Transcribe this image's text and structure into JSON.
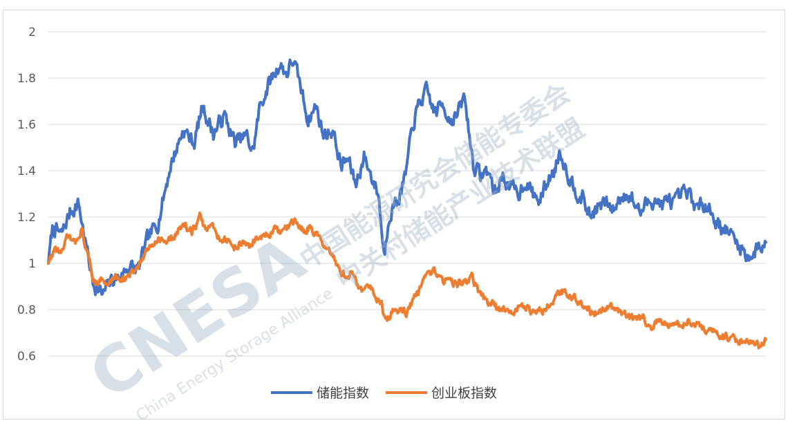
{
  "chart_data": {
    "type": "line",
    "title": "",
    "xlabel": "",
    "ylabel": "",
    "ylim": [
      0.6,
      2.0
    ],
    "yticks": [
      "0.6",
      "0.8",
      "1",
      "1.2",
      "1.4",
      "1.6",
      "1.8",
      "2"
    ],
    "grid": true,
    "legend_position": "bottom-center",
    "x": [
      0,
      10,
      20,
      30,
      40,
      50,
      60,
      70,
      80,
      90,
      100
    ],
    "series": [
      {
        "name": "储能指数",
        "color": "#4472C4",
        "anchors": [
          [
            0,
            1.0
          ],
          [
            0.6,
            1.16
          ],
          [
            1.8,
            1.12
          ],
          [
            3.0,
            1.22
          ],
          [
            4.2,
            1.26
          ],
          [
            5.0,
            1.12
          ],
          [
            6.2,
            0.92
          ],
          [
            7.6,
            0.86
          ],
          [
            8.8,
            0.93
          ],
          [
            10.0,
            0.94
          ],
          [
            11.2,
            0.99
          ],
          [
            12.5,
            0.97
          ],
          [
            13.8,
            1.1
          ],
          [
            15.3,
            1.18
          ],
          [
            17.0,
            1.42
          ],
          [
            18.8,
            1.58
          ],
          [
            20.3,
            1.52
          ],
          [
            21.5,
            1.68
          ],
          [
            23.0,
            1.56
          ],
          [
            24.5,
            1.64
          ],
          [
            26.0,
            1.52
          ],
          [
            27.6,
            1.55
          ],
          [
            28.5,
            1.48
          ],
          [
            29.5,
            1.68
          ],
          [
            30.8,
            1.78
          ],
          [
            32.2,
            1.86
          ],
          [
            33.2,
            1.82
          ],
          [
            34.1,
            1.88
          ],
          [
            35.0,
            1.78
          ],
          [
            36.2,
            1.62
          ],
          [
            37.3,
            1.68
          ],
          [
            38.4,
            1.55
          ],
          [
            39.6,
            1.58
          ],
          [
            40.8,
            1.42
          ],
          [
            41.8,
            1.45
          ],
          [
            42.8,
            1.34
          ],
          [
            44.0,
            1.46
          ],
          [
            45.0,
            1.38
          ],
          [
            46.0,
            1.3
          ],
          [
            46.8,
            1.03
          ],
          [
            47.5,
            1.22
          ],
          [
            48.8,
            1.28
          ],
          [
            49.8,
            1.38
          ],
          [
            50.8,
            1.6
          ],
          [
            51.8,
            1.7
          ],
          [
            52.8,
            1.74
          ],
          [
            53.8,
            1.65
          ],
          [
            55.0,
            1.69
          ],
          [
            56.0,
            1.62
          ],
          [
            57.0,
            1.64
          ],
          [
            58.0,
            1.72
          ],
          [
            59.2,
            1.43
          ],
          [
            60.2,
            1.38
          ],
          [
            61.3,
            1.4
          ],
          [
            62.3,
            1.3
          ],
          [
            63.3,
            1.38
          ],
          [
            64.3,
            1.33
          ],
          [
            65.5,
            1.3
          ],
          [
            66.5,
            1.36
          ],
          [
            67.5,
            1.3
          ],
          [
            68.5,
            1.27
          ],
          [
            69.5,
            1.35
          ],
          [
            70.5,
            1.4
          ],
          [
            71.3,
            1.49
          ],
          [
            72.5,
            1.38
          ],
          [
            73.5,
            1.32
          ],
          [
            74.5,
            1.28
          ],
          [
            75.5,
            1.2
          ],
          [
            76.5,
            1.24
          ],
          [
            77.7,
            1.26
          ],
          [
            78.7,
            1.23
          ],
          [
            79.7,
            1.28
          ],
          [
            80.5,
            1.31
          ],
          [
            81.5,
            1.27
          ],
          [
            82.5,
            1.22
          ],
          [
            83.5,
            1.26
          ],
          [
            84.5,
            1.28
          ],
          [
            85.5,
            1.25
          ],
          [
            86.5,
            1.27
          ],
          [
            87.5,
            1.26
          ],
          [
            88.5,
            1.3
          ],
          [
            89.5,
            1.29
          ],
          [
            90.5,
            1.23
          ],
          [
            91.7,
            1.27
          ],
          [
            92.7,
            1.2
          ],
          [
            93.7,
            1.16
          ],
          [
            94.7,
            1.14
          ],
          [
            95.7,
            1.1
          ],
          [
            96.7,
            1.06
          ],
          [
            97.5,
            1.03
          ],
          [
            98.3,
            1.04
          ],
          [
            99.0,
            1.07
          ],
          [
            100,
            1.09
          ]
        ]
      },
      {
        "name": "创业板指数",
        "color": "#ED7D31",
        "anchors": [
          [
            0,
            1.0
          ],
          [
            0.8,
            1.06
          ],
          [
            2.0,
            1.05
          ],
          [
            2.8,
            1.12
          ],
          [
            3.6,
            1.08
          ],
          [
            4.6,
            1.15
          ],
          [
            5.6,
            1.02
          ],
          [
            6.4,
            0.92
          ],
          [
            7.4,
            0.93
          ],
          [
            8.2,
            0.9
          ],
          [
            9.4,
            0.95
          ],
          [
            10.6,
            0.93
          ],
          [
            11.8,
            0.96
          ],
          [
            12.5,
            0.99
          ],
          [
            13.8,
            1.05
          ],
          [
            15.0,
            1.11
          ],
          [
            16.5,
            1.09
          ],
          [
            17.8,
            1.12
          ],
          [
            18.8,
            1.18
          ],
          [
            20.0,
            1.13
          ],
          [
            21.1,
            1.2
          ],
          [
            22.0,
            1.14
          ],
          [
            22.8,
            1.17
          ],
          [
            23.5,
            1.12
          ],
          [
            24.8,
            1.1
          ],
          [
            25.8,
            1.07
          ],
          [
            27.0,
            1.09
          ],
          [
            28.0,
            1.07
          ],
          [
            29.0,
            1.11
          ],
          [
            30.5,
            1.12
          ],
          [
            31.5,
            1.14
          ],
          [
            32.5,
            1.13
          ],
          [
            33.5,
            1.16
          ],
          [
            34.5,
            1.18
          ],
          [
            35.5,
            1.14
          ],
          [
            36.5,
            1.16
          ],
          [
            37.5,
            1.12
          ],
          [
            38.5,
            1.06
          ],
          [
            39.5,
            1.03
          ],
          [
            40.5,
            0.98
          ],
          [
            41.5,
            0.94
          ],
          [
            42.5,
            0.96
          ],
          [
            43.5,
            0.88
          ],
          [
            44.5,
            0.9
          ],
          [
            45.5,
            0.87
          ],
          [
            46.5,
            0.82
          ],
          [
            47.0,
            0.74
          ],
          [
            48.0,
            0.79
          ],
          [
            49.0,
            0.8
          ],
          [
            50.0,
            0.79
          ],
          [
            51.0,
            0.85
          ],
          [
            52.0,
            0.89
          ],
          [
            52.8,
            0.94
          ],
          [
            53.8,
            0.96
          ],
          [
            55.0,
            0.93
          ],
          [
            56.0,
            0.92
          ],
          [
            57.0,
            0.91
          ],
          [
            58.0,
            0.92
          ],
          [
            59.0,
            0.94
          ],
          [
            60.0,
            0.87
          ],
          [
            61.0,
            0.84
          ],
          [
            62.0,
            0.82
          ],
          [
            63.0,
            0.79
          ],
          [
            64.0,
            0.81
          ],
          [
            65.0,
            0.79
          ],
          [
            66.0,
            0.82
          ],
          [
            67.0,
            0.8
          ],
          [
            68.0,
            0.78
          ],
          [
            69.0,
            0.8
          ],
          [
            70.0,
            0.84
          ],
          [
            71.0,
            0.87
          ],
          [
            72.0,
            0.88
          ],
          [
            73.0,
            0.85
          ],
          [
            74.0,
            0.84
          ],
          [
            75.0,
            0.81
          ],
          [
            76.0,
            0.78
          ],
          [
            77.0,
            0.8
          ],
          [
            78.0,
            0.82
          ],
          [
            79.0,
            0.8
          ],
          [
            80.0,
            0.79
          ],
          [
            81.0,
            0.76
          ],
          [
            82.0,
            0.75
          ],
          [
            83.0,
            0.77
          ],
          [
            84.0,
            0.72
          ],
          [
            85.0,
            0.75
          ],
          [
            86.0,
            0.73
          ],
          [
            87.0,
            0.75
          ],
          [
            88.0,
            0.73
          ],
          [
            89.0,
            0.76
          ],
          [
            90.0,
            0.75
          ],
          [
            91.0,
            0.72
          ],
          [
            92.0,
            0.7
          ],
          [
            93.0,
            0.71
          ],
          [
            94.0,
            0.68
          ],
          [
            95.0,
            0.68
          ],
          [
            96.0,
            0.67
          ],
          [
            97.0,
            0.67
          ],
          [
            98.0,
            0.65
          ],
          [
            99.0,
            0.64
          ],
          [
            100,
            0.67
          ]
        ]
      }
    ]
  },
  "watermark": {
    "logo_text": "CNESA",
    "tagline": "China Energy Storage Alliance",
    "line1": "中国能源研究会储能专委会",
    "line2": "中关村储能产业技术联盟",
    "color": "#9fb4c6"
  }
}
